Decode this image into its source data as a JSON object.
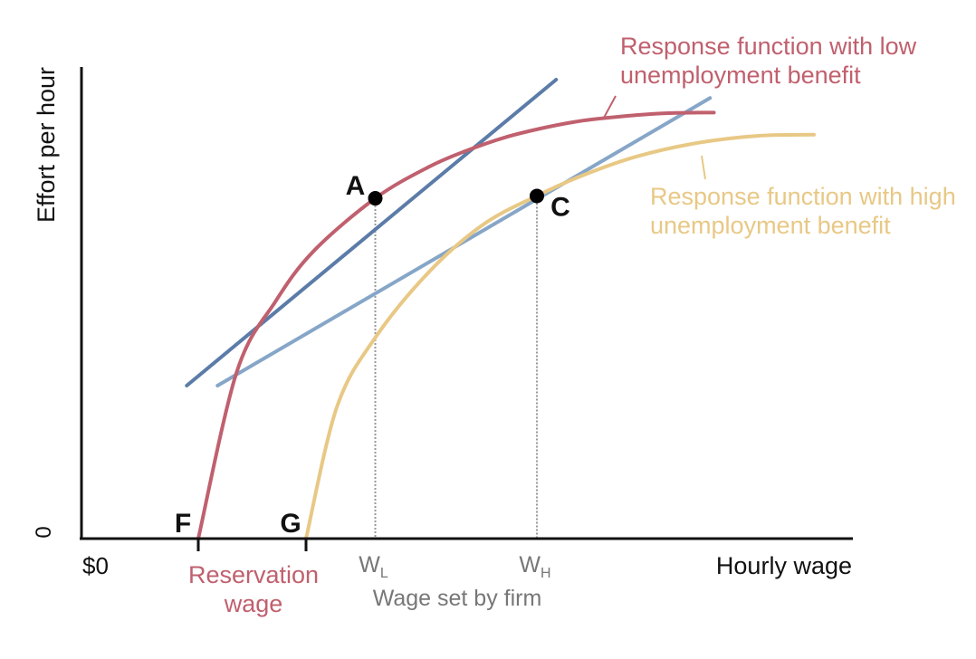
{
  "colors": {
    "low_benefit_curve": "#c0606e",
    "high_benefit_curve": "#e8c885",
    "tangent_a": "#5b7ca8",
    "tangent_c": "#86a6c8",
    "axis": "#111111",
    "dropline": "#999999",
    "muted_text": "#777777"
  },
  "chart_data": {
    "type": "line",
    "xlabel": "Hourly wage",
    "ylabel": "Effort per hour",
    "x_origin_label": "$0",
    "y_origin_label": "0",
    "xlim": [
      0,
      100
    ],
    "ylim": [
      0,
      100
    ],
    "x_ticks": [
      {
        "id": "F",
        "x": 15
      },
      {
        "id": "G",
        "x": 29
      },
      {
        "id": "W_L",
        "x": 38,
        "main": "W",
        "sub": "L"
      },
      {
        "id": "W_H",
        "x": 59,
        "main": "W",
        "sub": "H"
      }
    ],
    "x_tick_caption": "Wage set by firm",
    "reservation_label_lines": [
      "Reservation",
      "wage"
    ],
    "series": [
      {
        "id": "low",
        "name": "Response function with low unemployment benefit",
        "label_lines": [
          "Response function with low",
          "unemployment benefit"
        ],
        "x": [
          15,
          20,
          25,
          30,
          38,
          45,
          50,
          55,
          60,
          65,
          70,
          75,
          80,
          82
        ],
        "y": [
          0,
          35.4,
          50.3,
          61.1,
          72.3,
          79.0,
          82.5,
          85.3,
          87.3,
          88.8,
          89.7,
          90.3,
          90.5,
          90.5
        ]
      },
      {
        "id": "high",
        "name": "Response function with high unemployment benefit",
        "label_lines": [
          "Response function with high",
          "unemployment benefit"
        ],
        "x": [
          29,
          33,
          38,
          45,
          52,
          59,
          65,
          72,
          80,
          88,
          95
        ],
        "y": [
          0,
          27.9,
          42.7,
          56.7,
          66.7,
          72.8,
          77.2,
          81.2,
          84.1,
          85.6,
          85.8
        ]
      }
    ],
    "tangent_lines": [
      {
        "id": "tangent_A",
        "x": [
          13.5,
          61.5
        ],
        "y": [
          32.5,
          97.5
        ]
      },
      {
        "id": "tangent_C",
        "x": [
          17.5,
          81.5
        ],
        "y": [
          32.5,
          93.6
        ]
      }
    ],
    "points": [
      {
        "label": "A",
        "x": 38,
        "y": 72.3
      },
      {
        "label": "C",
        "x": 59,
        "y": 72.8
      }
    ]
  }
}
